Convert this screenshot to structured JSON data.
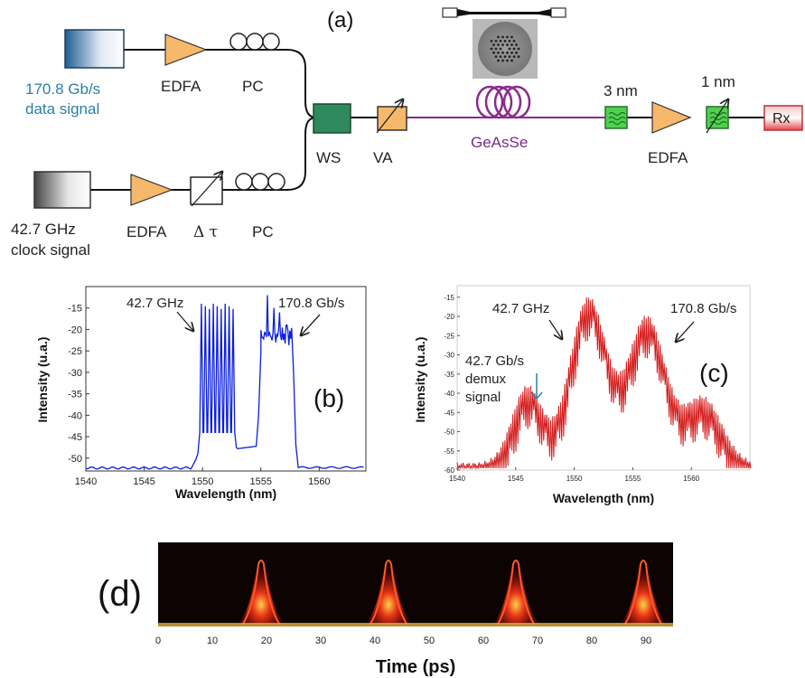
{
  "diagram": {
    "panel_label": "(a)",
    "data_source_label": [
      "170.8 Gb/s",
      "data signal"
    ],
    "clock_source_label": [
      "42.7 GHz",
      "clock signal"
    ],
    "edfa_label": "EDFA",
    "pc_label": "PC",
    "delay_label": "Δ τ",
    "ws_label": "WS",
    "va_label": "VA",
    "fiber_label": "GeAsSe",
    "filter1_label": "3 nm",
    "filter2_label": "1 nm",
    "rx_label": "Rx",
    "colors": {
      "data_source": "#1e5f93",
      "clock_source": "#555555",
      "edfa": "#f6b86a",
      "ws": "#2e8a5c",
      "fiber": "#8a2b8e",
      "filter": "#4fd14f",
      "rx": "#e8474c"
    }
  },
  "chart_data": [
    {
      "panel": "(b)",
      "type": "line",
      "xlabel": "Wavelength (nm)",
      "ylabel": "Intensity (u.a.)",
      "xlim": [
        1540,
        1564
      ],
      "ylim": [
        -53,
        -10
      ],
      "xticks": [
        1540,
        1545,
        1550,
        1555,
        1560
      ],
      "yticks": [
        -15,
        -20,
        -25,
        -30,
        -35,
        -40,
        -45,
        -50
      ],
      "color": "#0b1ee0",
      "annotations": [
        "42.7 GHz",
        "170.8 Gb/s"
      ]
    },
    {
      "panel": "(c)",
      "type": "line",
      "xlabel": "Wavelength (nm)",
      "ylabel": "Intensity (u.a.)",
      "xlim": [
        1540,
        1565
      ],
      "ylim": [
        -60,
        -12
      ],
      "xticks": [
        1540,
        1545,
        1550,
        1555,
        1560
      ],
      "yticks": [
        -15,
        -20,
        -25,
        -30,
        -35,
        -40,
        -45,
        -50,
        -55,
        -60
      ],
      "color": "#d41a1a",
      "annotations": [
        "42.7 GHz",
        "170.8 Gb/s"
      ],
      "demux_annotation": [
        "42.7 Gb/s",
        "demux",
        "signal"
      ]
    },
    {
      "panel": "(d)",
      "type": "heatmap",
      "xlabel": "Time (ps)",
      "xlim": [
        0,
        95
      ],
      "xticks": [
        0,
        10,
        20,
        30,
        40,
        50,
        60,
        70,
        80,
        90
      ],
      "pulse_centers": [
        19,
        42.5,
        66,
        89.5
      ]
    }
  ]
}
